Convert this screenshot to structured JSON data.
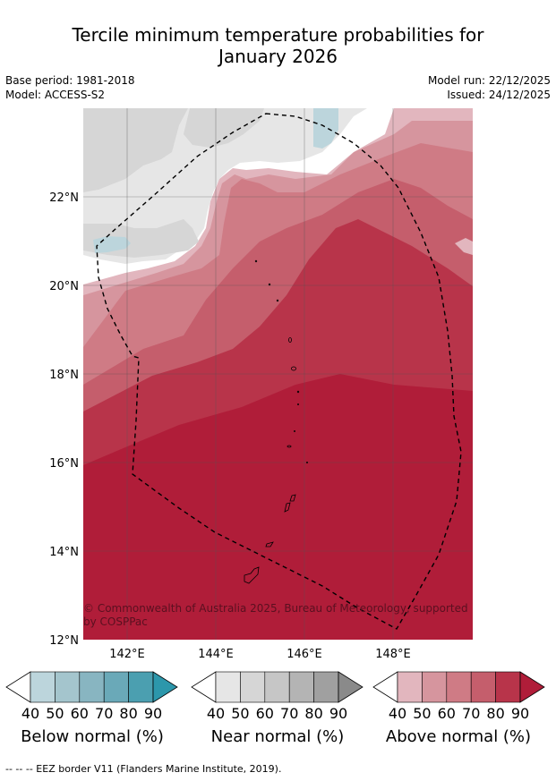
{
  "title": {
    "line1": "Tercile minimum temperature probabilities for",
    "line2": "January 2026"
  },
  "meta": {
    "base_period": "Base period: 1981-2018",
    "model": "Model: ACCESS-S2",
    "model_run": "Model run: 22/12/2025",
    "issued": "Issued: 24/12/2025"
  },
  "axes": {
    "lat_labels": [
      "22°N",
      "20°N",
      "18°N",
      "16°N",
      "14°N",
      "12°N"
    ],
    "lon_labels": [
      "142°E",
      "144°E",
      "146°E",
      "148°E"
    ]
  },
  "copyright": {
    "line1": "© Commonwealth of Australia 2025, Bureau of Meteorology, supported",
    "line2": "by COSPPac"
  },
  "colorbars": [
    {
      "label": "Below normal (%)",
      "ticks": [
        "40",
        "50",
        "60",
        "70",
        "80",
        "90"
      ],
      "colors": [
        "#bcd5dc",
        "#a4c5cd",
        "#88b5c1",
        "#6aa9b8",
        "#4b9fb0",
        "#2c97ab"
      ]
    },
    {
      "label": "Near normal (%)",
      "ticks": [
        "40",
        "50",
        "60",
        "70",
        "80",
        "90"
      ],
      "colors": [
        "#e6e6e6",
        "#d6d6d6",
        "#c6c6c6",
        "#b4b4b4",
        "#a0a0a0",
        "#8a8a8a"
      ]
    },
    {
      "label": "Above normal (%)",
      "ticks": [
        "40",
        "50",
        "60",
        "70",
        "80",
        "90"
      ],
      "colors": [
        "#e2b6be",
        "#d6959e",
        "#cf7b85",
        "#c55e6c",
        "#b8344a",
        "#b01d39"
      ]
    }
  ],
  "footer": "--  --  -- EEZ border V11 (Flanders Marine Institute, 2019)."
}
